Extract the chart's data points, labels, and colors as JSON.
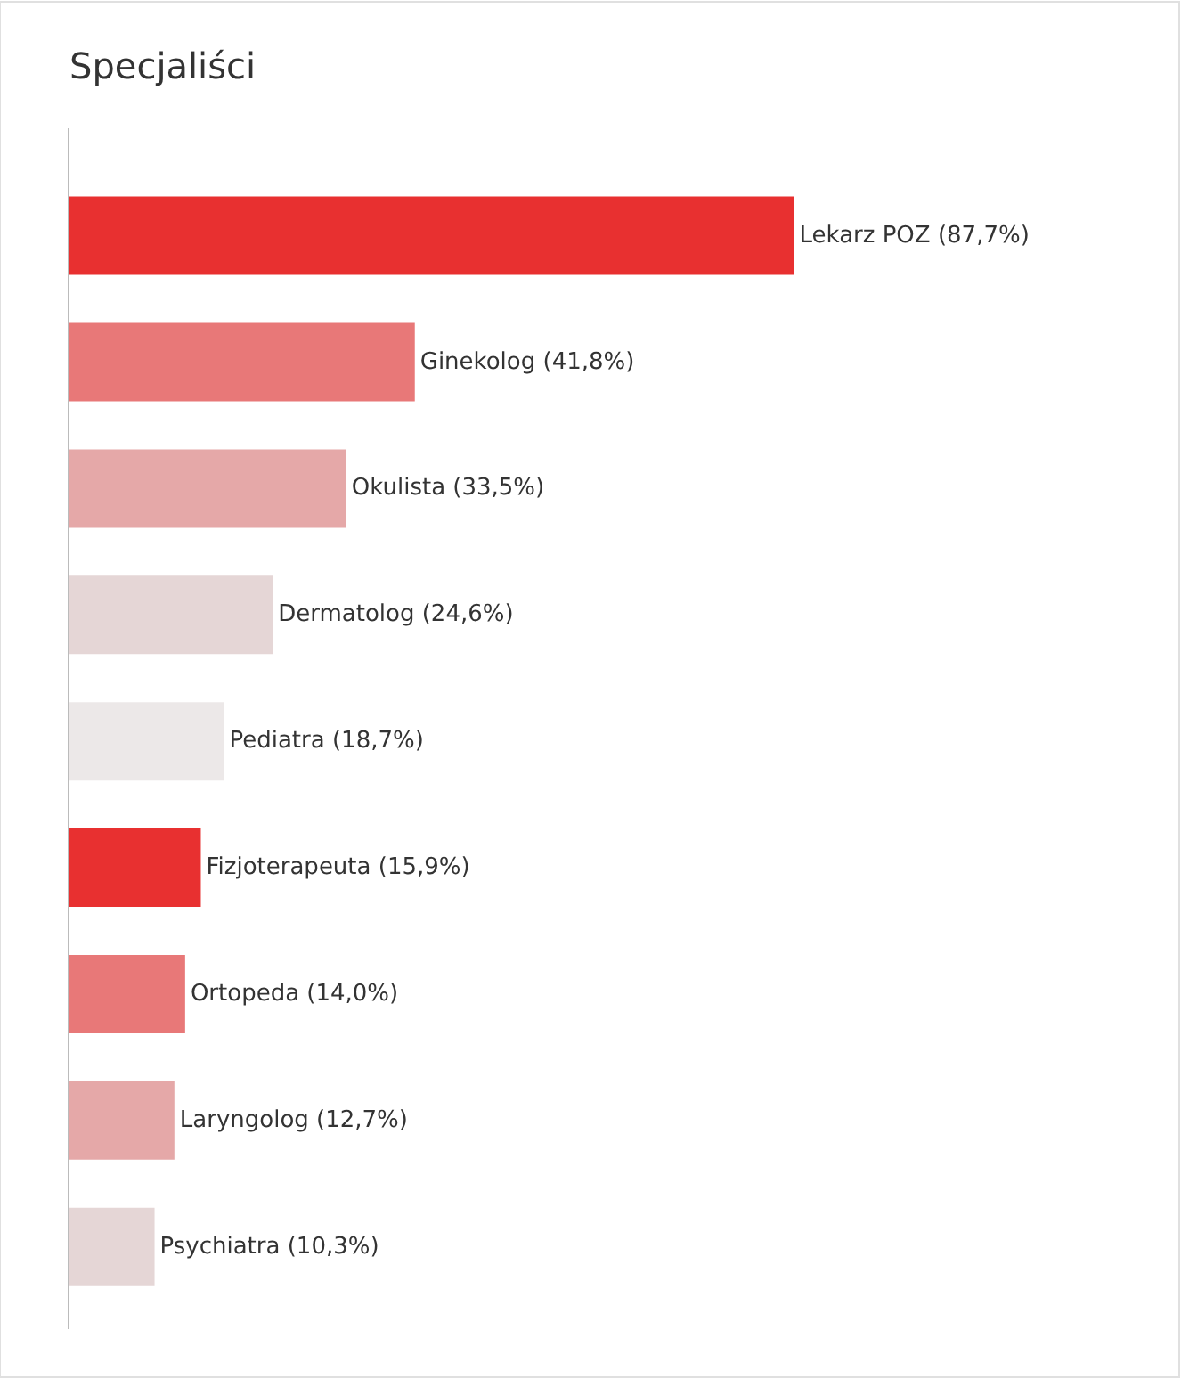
{
  "chart_data": {
    "type": "bar",
    "orientation": "horizontal",
    "title": "Specjaliści",
    "categories": [
      null,
      null,
      null,
      null,
      null,
      null,
      null,
      null,
      null
    ],
    "values": [
      87.7,
      41.8,
      33.5,
      24.6,
      18.7,
      15.9,
      14.0,
      12.7,
      10.3
    ],
    "colors": [
      "#e83030",
      "#e87878",
      "#e5a8a8",
      "#e5d6d6",
      "#ece8e8",
      "#e83030",
      "#e87878",
      "#e5a8a8",
      "#e5d6d6"
    ],
    "value_labels": [
      "Lekarz POZ (87,7%)",
      "Ginekolog (41,8%)",
      "Okulista (33,5%)",
      "Dermatolog (24,6%)",
      "Pediatra (18,7%)",
      "Fizjoterapeuta (15,9%)",
      "Ortopeda (14,0%)",
      "Laryngolog (12,7%)",
      "Psychiatra (10,3%)"
    ],
    "tick_labels": false,
    "legend": false
  }
}
